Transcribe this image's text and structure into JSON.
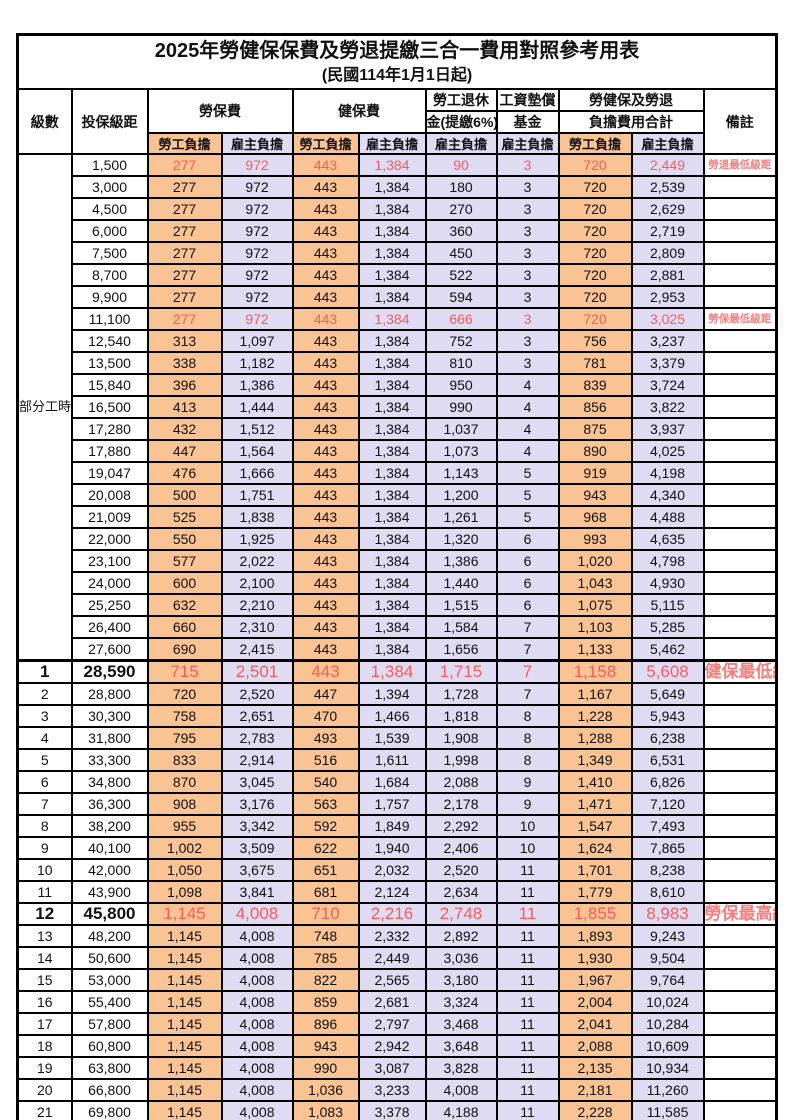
{
  "title": "2025年勞健保保費及勞退提繳三合一費用對照參考用表",
  "subtitle": "(民國114年1月1日起)",
  "header": {
    "level": "級數",
    "bracket": "投保級距",
    "labor_insurance": "勞保費",
    "health_insurance": "健保費",
    "pension_line1": "勞工退休",
    "pension_line2": "金(提繳6%)",
    "wage_fund_line1": "工資墊償",
    "wage_fund_line2": "基金",
    "total_line1": "勞健保及勞退",
    "total_line2": "負擔費用合計",
    "remark": "備註",
    "employee": "勞工負擔",
    "employer": "雇主負擔"
  },
  "colors": {
    "employee_column_bg": "#FAC394",
    "employer_column_bg": "#DEDBF2",
    "highlight_value_red": "#F85C5C",
    "remark_red": "#F87E7E",
    "grid_border": "#000000"
  },
  "part_time": {
    "label": "部分工時",
    "rowspan": 23
  },
  "rows": [
    {
      "lv": null,
      "b": "1,500",
      "v": [
        "277",
        "972",
        "443",
        "1,384",
        "90",
        "3",
        "720",
        "2,449"
      ],
      "r": "勞退最低級距",
      "red": true,
      "big": false,
      "sect": false
    },
    {
      "lv": null,
      "b": "3,000",
      "v": [
        "277",
        "972",
        "443",
        "1,384",
        "180",
        "3",
        "720",
        "2,539"
      ],
      "r": "",
      "red": false,
      "big": false,
      "sect": false
    },
    {
      "lv": null,
      "b": "4,500",
      "v": [
        "277",
        "972",
        "443",
        "1,384",
        "270",
        "3",
        "720",
        "2,629"
      ],
      "r": "",
      "red": false,
      "big": false,
      "sect": false
    },
    {
      "lv": null,
      "b": "6,000",
      "v": [
        "277",
        "972",
        "443",
        "1,384",
        "360",
        "3",
        "720",
        "2,719"
      ],
      "r": "",
      "red": false,
      "big": false,
      "sect": false
    },
    {
      "lv": null,
      "b": "7,500",
      "v": [
        "277",
        "972",
        "443",
        "1,384",
        "450",
        "3",
        "720",
        "2,809"
      ],
      "r": "",
      "red": false,
      "big": false,
      "sect": false
    },
    {
      "lv": null,
      "b": "8,700",
      "v": [
        "277",
        "972",
        "443",
        "1,384",
        "522",
        "3",
        "720",
        "2,881"
      ],
      "r": "",
      "red": false,
      "big": false,
      "sect": false
    },
    {
      "lv": null,
      "b": "9,900",
      "v": [
        "277",
        "972",
        "443",
        "1,384",
        "594",
        "3",
        "720",
        "2,953"
      ],
      "r": "",
      "red": false,
      "big": false,
      "sect": false
    },
    {
      "lv": null,
      "b": "11,100",
      "v": [
        "277",
        "972",
        "443",
        "1,384",
        "666",
        "3",
        "720",
        "3,025"
      ],
      "r": "勞保最低級距",
      "red": true,
      "big": false,
      "sect": false
    },
    {
      "lv": null,
      "b": "12,540",
      "v": [
        "313",
        "1,097",
        "443",
        "1,384",
        "752",
        "3",
        "756",
        "3,237"
      ],
      "r": "",
      "red": false,
      "big": false,
      "sect": false
    },
    {
      "lv": null,
      "b": "13,500",
      "v": [
        "338",
        "1,182",
        "443",
        "1,384",
        "810",
        "3",
        "781",
        "3,379"
      ],
      "r": "",
      "red": false,
      "big": false,
      "sect": false
    },
    {
      "lv": null,
      "b": "15,840",
      "v": [
        "396",
        "1,386",
        "443",
        "1,384",
        "950",
        "4",
        "839",
        "3,724"
      ],
      "r": "",
      "red": false,
      "big": false,
      "sect": false
    },
    {
      "lv": null,
      "b": "16,500",
      "v": [
        "413",
        "1,444",
        "443",
        "1,384",
        "990",
        "4",
        "856",
        "3,822"
      ],
      "r": "",
      "red": false,
      "big": false,
      "sect": false
    },
    {
      "lv": null,
      "b": "17,280",
      "v": [
        "432",
        "1,512",
        "443",
        "1,384",
        "1,037",
        "4",
        "875",
        "3,937"
      ],
      "r": "",
      "red": false,
      "big": false,
      "sect": false
    },
    {
      "lv": null,
      "b": "17,880",
      "v": [
        "447",
        "1,564",
        "443",
        "1,384",
        "1,073",
        "4",
        "890",
        "4,025"
      ],
      "r": "",
      "red": false,
      "big": false,
      "sect": false
    },
    {
      "lv": null,
      "b": "19,047",
      "v": [
        "476",
        "1,666",
        "443",
        "1,384",
        "1,143",
        "5",
        "919",
        "4,198"
      ],
      "r": "",
      "red": false,
      "big": false,
      "sect": false
    },
    {
      "lv": null,
      "b": "20,008",
      "v": [
        "500",
        "1,751",
        "443",
        "1,384",
        "1,200",
        "5",
        "943",
        "4,340"
      ],
      "r": "",
      "red": false,
      "big": false,
      "sect": false
    },
    {
      "lv": null,
      "b": "21,009",
      "v": [
        "525",
        "1,838",
        "443",
        "1,384",
        "1,261",
        "5",
        "968",
        "4,488"
      ],
      "r": "",
      "red": false,
      "big": false,
      "sect": false
    },
    {
      "lv": null,
      "b": "22,000",
      "v": [
        "550",
        "1,925",
        "443",
        "1,384",
        "1,320",
        "6",
        "993",
        "4,635"
      ],
      "r": "",
      "red": false,
      "big": false,
      "sect": false
    },
    {
      "lv": null,
      "b": "23,100",
      "v": [
        "577",
        "2,022",
        "443",
        "1,384",
        "1,386",
        "6",
        "1,020",
        "4,798"
      ],
      "r": "",
      "red": false,
      "big": false,
      "sect": false
    },
    {
      "lv": null,
      "b": "24,000",
      "v": [
        "600",
        "2,100",
        "443",
        "1,384",
        "1,440",
        "6",
        "1,043",
        "4,930"
      ],
      "r": "",
      "red": false,
      "big": false,
      "sect": false
    },
    {
      "lv": null,
      "b": "25,250",
      "v": [
        "632",
        "2,210",
        "443",
        "1,384",
        "1,515",
        "6",
        "1,075",
        "5,115"
      ],
      "r": "",
      "red": false,
      "big": false,
      "sect": false
    },
    {
      "lv": null,
      "b": "26,400",
      "v": [
        "660",
        "2,310",
        "443",
        "1,384",
        "1,584",
        "7",
        "1,103",
        "5,285"
      ],
      "r": "",
      "red": false,
      "big": false,
      "sect": false
    },
    {
      "lv": null,
      "b": "27,600",
      "v": [
        "690",
        "2,415",
        "443",
        "1,384",
        "1,656",
        "7",
        "1,133",
        "5,462"
      ],
      "r": "",
      "red": false,
      "big": false,
      "sect": false
    },
    {
      "lv": "1",
      "b": "28,590",
      "v": [
        "715",
        "2,501",
        "443",
        "1,384",
        "1,715",
        "7",
        "1,158",
        "5,608"
      ],
      "r": "健保最低級距",
      "red": true,
      "big": true,
      "sect": true
    },
    {
      "lv": "2",
      "b": "28,800",
      "v": [
        "720",
        "2,520",
        "447",
        "1,394",
        "1,728",
        "7",
        "1,167",
        "5,649"
      ],
      "r": "",
      "red": false,
      "big": false,
      "sect": false
    },
    {
      "lv": "3",
      "b": "30,300",
      "v": [
        "758",
        "2,651",
        "470",
        "1,466",
        "1,818",
        "8",
        "1,228",
        "5,943"
      ],
      "r": "",
      "red": false,
      "big": false,
      "sect": false
    },
    {
      "lv": "4",
      "b": "31,800",
      "v": [
        "795",
        "2,783",
        "493",
        "1,539",
        "1,908",
        "8",
        "1,288",
        "6,238"
      ],
      "r": "",
      "red": false,
      "big": false,
      "sect": false
    },
    {
      "lv": "5",
      "b": "33,300",
      "v": [
        "833",
        "2,914",
        "516",
        "1,611",
        "1,998",
        "8",
        "1,349",
        "6,531"
      ],
      "r": "",
      "red": false,
      "big": false,
      "sect": false
    },
    {
      "lv": "6",
      "b": "34,800",
      "v": [
        "870",
        "3,045",
        "540",
        "1,684",
        "2,088",
        "9",
        "1,410",
        "6,826"
      ],
      "r": "",
      "red": false,
      "big": false,
      "sect": false
    },
    {
      "lv": "7",
      "b": "36,300",
      "v": [
        "908",
        "3,176",
        "563",
        "1,757",
        "2,178",
        "9",
        "1,471",
        "7,120"
      ],
      "r": "",
      "red": false,
      "big": false,
      "sect": false
    },
    {
      "lv": "8",
      "b": "38,200",
      "v": [
        "955",
        "3,342",
        "592",
        "1,849",
        "2,292",
        "10",
        "1,547",
        "7,493"
      ],
      "r": "",
      "red": false,
      "big": false,
      "sect": false
    },
    {
      "lv": "9",
      "b": "40,100",
      "v": [
        "1,002",
        "3,509",
        "622",
        "1,940",
        "2,406",
        "10",
        "1,624",
        "7,865"
      ],
      "r": "",
      "red": false,
      "big": false,
      "sect": false
    },
    {
      "lv": "10",
      "b": "42,000",
      "v": [
        "1,050",
        "3,675",
        "651",
        "2,032",
        "2,520",
        "11",
        "1,701",
        "8,238"
      ],
      "r": "",
      "red": false,
      "big": false,
      "sect": false
    },
    {
      "lv": "11",
      "b": "43,900",
      "v": [
        "1,098",
        "3,841",
        "681",
        "2,124",
        "2,634",
        "11",
        "1,779",
        "8,610"
      ],
      "r": "",
      "red": false,
      "big": false,
      "sect": false
    },
    {
      "lv": "12",
      "b": "45,800",
      "v": [
        "1,145",
        "4,008",
        "710",
        "2,216",
        "2,748",
        "11",
        "1,855",
        "8,983"
      ],
      "r": "勞保最高級距",
      "red": true,
      "big": true,
      "sect": false
    },
    {
      "lv": "13",
      "b": "48,200",
      "v": [
        "1,145",
        "4,008",
        "748",
        "2,332",
        "2,892",
        "11",
        "1,893",
        "9,243"
      ],
      "r": "",
      "red": false,
      "big": false,
      "sect": false
    },
    {
      "lv": "14",
      "b": "50,600",
      "v": [
        "1,145",
        "4,008",
        "785",
        "2,449",
        "3,036",
        "11",
        "1,930",
        "9,504"
      ],
      "r": "",
      "red": false,
      "big": false,
      "sect": false
    },
    {
      "lv": "15",
      "b": "53,000",
      "v": [
        "1,145",
        "4,008",
        "822",
        "2,565",
        "3,180",
        "11",
        "1,967",
        "9,764"
      ],
      "r": "",
      "red": false,
      "big": false,
      "sect": false
    },
    {
      "lv": "16",
      "b": "55,400",
      "v": [
        "1,145",
        "4,008",
        "859",
        "2,681",
        "3,324",
        "11",
        "2,004",
        "10,024"
      ],
      "r": "",
      "red": false,
      "big": false,
      "sect": false
    },
    {
      "lv": "17",
      "b": "57,800",
      "v": [
        "1,145",
        "4,008",
        "896",
        "2,797",
        "3,468",
        "11",
        "2,041",
        "10,284"
      ],
      "r": "",
      "red": false,
      "big": false,
      "sect": false
    },
    {
      "lv": "18",
      "b": "60,800",
      "v": [
        "1,145",
        "4,008",
        "943",
        "2,942",
        "3,648",
        "11",
        "2,088",
        "10,609"
      ],
      "r": "",
      "red": false,
      "big": false,
      "sect": false
    },
    {
      "lv": "19",
      "b": "63,800",
      "v": [
        "1,145",
        "4,008",
        "990",
        "3,087",
        "3,828",
        "11",
        "2,135",
        "10,934"
      ],
      "r": "",
      "red": false,
      "big": false,
      "sect": false
    },
    {
      "lv": "20",
      "b": "66,800",
      "v": [
        "1,145",
        "4,008",
        "1,036",
        "3,233",
        "4,008",
        "11",
        "2,181",
        "11,260"
      ],
      "r": "",
      "red": false,
      "big": false,
      "sect": false
    },
    {
      "lv": "21",
      "b": "69,800",
      "v": [
        "1,145",
        "4,008",
        "1,083",
        "3,378",
        "4,188",
        "11",
        "2,228",
        "11,585"
      ],
      "r": "",
      "red": false,
      "big": false,
      "sect": false
    }
  ]
}
